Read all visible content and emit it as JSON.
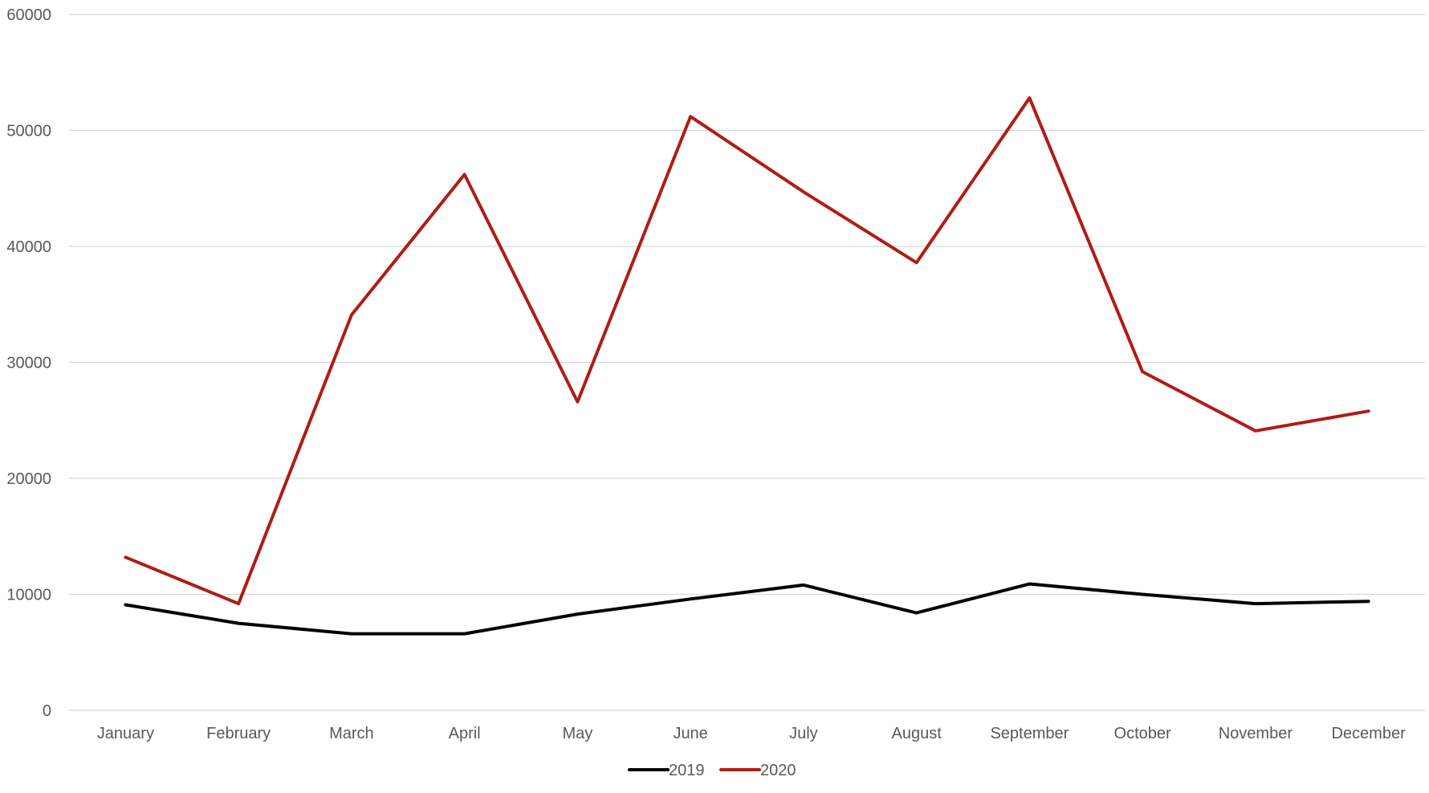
{
  "chart_data": {
    "type": "line",
    "title": "",
    "xlabel": "",
    "ylabel": "",
    "categories": [
      "January",
      "February",
      "March",
      "April",
      "May",
      "June",
      "July",
      "August",
      "September",
      "October",
      "November",
      "December"
    ],
    "ylim": [
      0,
      60000
    ],
    "yticks": [
      0,
      10000,
      20000,
      30000,
      40000,
      50000,
      60000
    ],
    "ytick_labels": [
      "0",
      "10000",
      "20000",
      "30000",
      "40000",
      "50000",
      "60000"
    ],
    "grid": true,
    "legend_position": "bottom",
    "series": [
      {
        "name": "2019",
        "color": "#000000",
        "values": [
          9100,
          7500,
          6600,
          6600,
          8300,
          9600,
          10800,
          8400,
          10900,
          10000,
          9200,
          9400
        ]
      },
      {
        "name": "2020",
        "color": "#b01c14",
        "values": [
          13200,
          9200,
          34100,
          46200,
          26600,
          51200,
          44700,
          38600,
          52800,
          29200,
          24100,
          25800
        ]
      }
    ]
  }
}
